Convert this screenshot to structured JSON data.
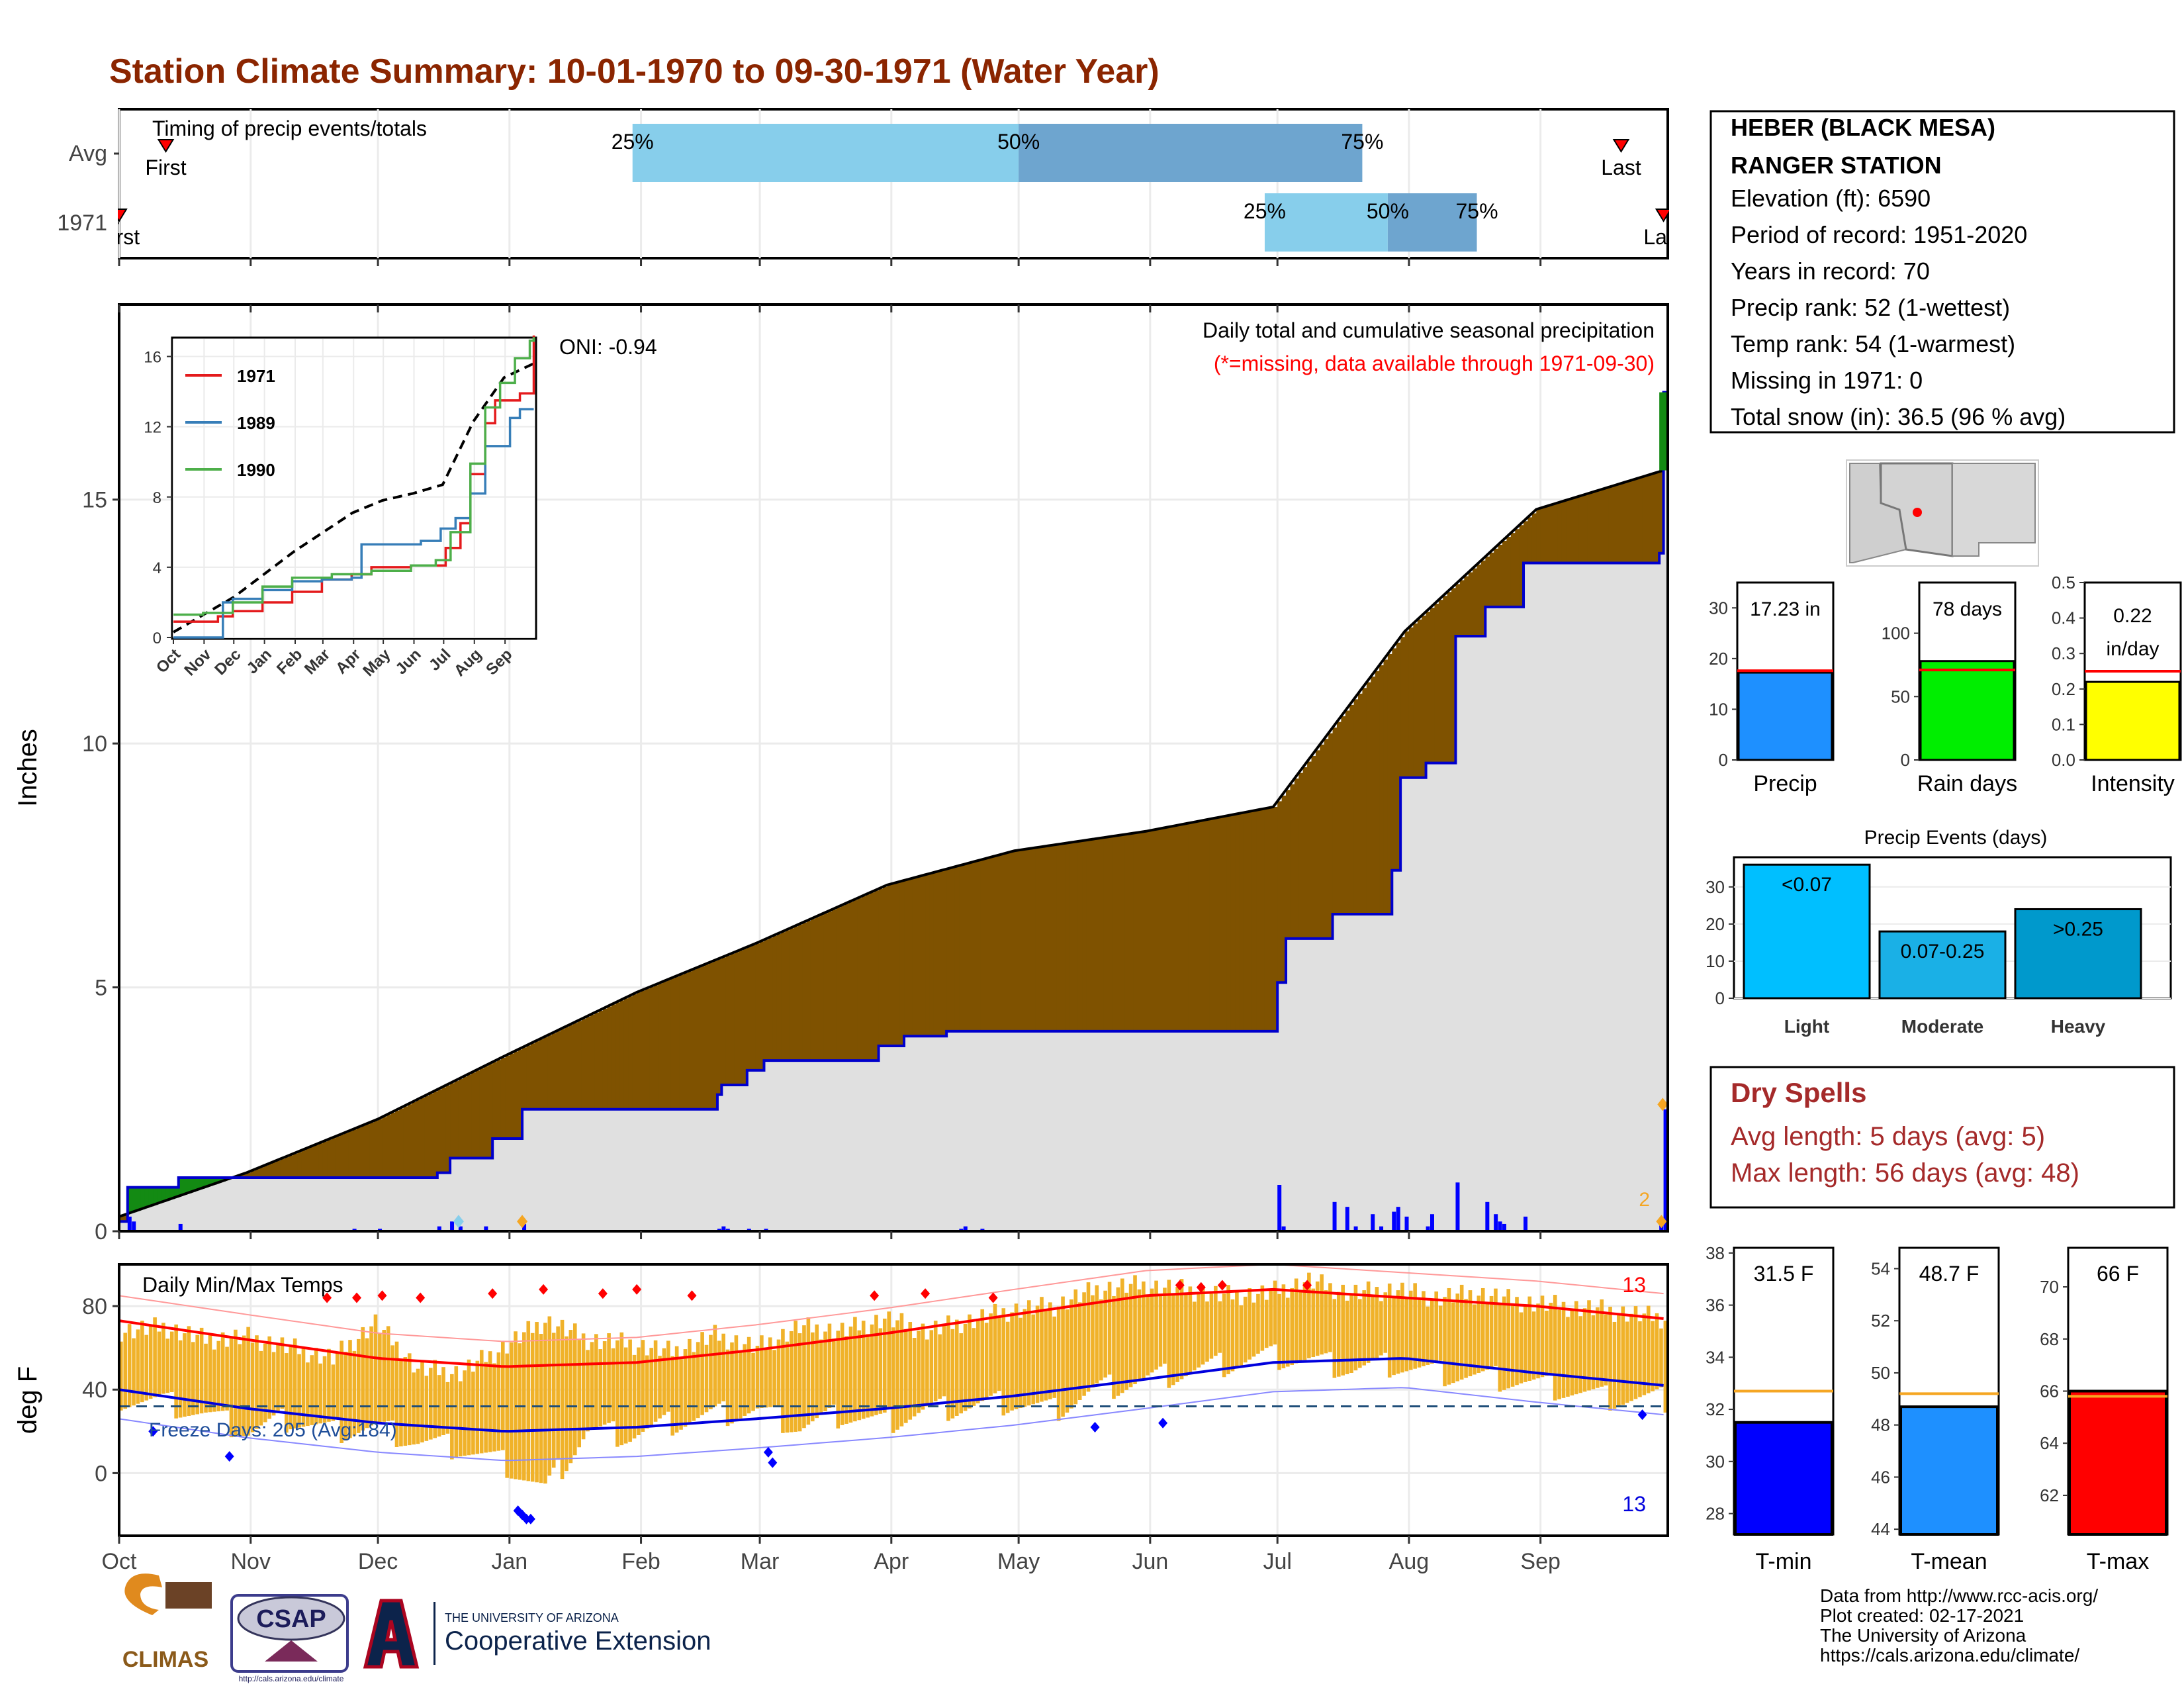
{
  "title": "Station Climate Summary: 10-01-1970 to 09-30-1971 (Water Year)",
  "chart_data": [
    {
      "type": "bar",
      "label": "Timing of precip events/totals",
      "rows": [
        {
          "name": "Avg",
          "first": "First",
          "last": "Last",
          "first_day": 11,
          "last_day": 354,
          "q25_day": 121,
          "q50_day": 212,
          "q75_day": 293
        },
        {
          "name": "1971",
          "first": "First",
          "last": "Last",
          "first_day": 0,
          "last_day": 364,
          "q25_day": 270,
          "q50_day": 299,
          "q75_day": 320
        }
      ],
      "quartile_labels": [
        "25%",
        "50%",
        "75%"
      ]
    },
    {
      "type": "area",
      "title": "Daily total and cumulative seasonal precipitation",
      "subtitle": "(*=missing, data available through 1971-09-30)",
      "oni": "ONI: -0.94",
      "ylabel": "Inches",
      "yticks": [
        "0",
        "5",
        "10",
        "15"
      ],
      "ylim": [
        0,
        19
      ],
      "xlim": [
        0,
        365
      ],
      "snow_count_label": "2",
      "avg_cumulative": {
        "x": [
          0,
          30,
          61,
          91,
          122,
          150,
          181,
          211,
          242,
          272,
          303,
          334,
          364
        ],
        "y": [
          0.3,
          1.2,
          2.3,
          3.6,
          4.9,
          5.9,
          7.1,
          7.8,
          8.2,
          8.7,
          12.3,
          14.8,
          15.6
        ]
      },
      "obs_cumulative": {
        "x": [
          0,
          2,
          14,
          30,
          61,
          75,
          78,
          88,
          95,
          141,
          142,
          148,
          152,
          179,
          179,
          185,
          195,
          196,
          205,
          220,
          273,
          275,
          286,
          300,
          302,
          308,
          315,
          322,
          331,
          331,
          363,
          364
        ],
        "y": [
          0.2,
          0.9,
          1.1,
          1.1,
          1.1,
          1.2,
          1.5,
          1.9,
          2.5,
          2.8,
          3.0,
          3.3,
          3.5,
          3.6,
          3.8,
          4.0,
          4.1,
          4.1,
          4.1,
          4.1,
          5.1,
          6.0,
          6.5,
          7.4,
          9.3,
          9.6,
          12.2,
          12.8,
          13.5,
          13.7,
          13.9,
          17.2
        ]
      },
      "daily_bars": {
        "x": [
          2,
          3,
          14,
          55,
          61,
          75,
          78,
          80,
          86,
          95,
          141,
          142,
          143,
          148,
          152,
          198,
          199,
          203,
          273,
          274,
          286,
          289,
          291,
          295,
          297,
          300,
          301,
          303,
          308,
          309,
          315,
          322,
          324,
          325,
          326,
          331,
          363,
          364
        ],
        "y": [
          0.3,
          0.2,
          0.15,
          0.05,
          0.05,
          0.1,
          0.2,
          0.1,
          0.1,
          0.15,
          0.05,
          0.1,
          0.05,
          0.05,
          0.05,
          0.05,
          0.1,
          0.05,
          0.95,
          0.1,
          0.6,
          0.5,
          0.1,
          0.35,
          0.1,
          0.4,
          0.5,
          0.3,
          0.1,
          0.35,
          1.0,
          0.6,
          0.35,
          0.2,
          0.15,
          0.3,
          0.15,
          2.5
        ]
      }
    },
    {
      "type": "line",
      "inset": true,
      "xticks": [
        "Oct",
        "Nov",
        "Dec",
        "Jan",
        "Feb",
        "Mar",
        "Apr",
        "May",
        "Jun",
        "Jul",
        "Aug",
        "Sep"
      ],
      "yticks": [
        "0",
        "4",
        "8",
        "12",
        "16"
      ],
      "ylim": [
        0,
        17
      ],
      "series": [
        {
          "name": "1971",
          "color": "#e41a1c",
          "x": [
            0,
            45,
            60,
            90,
            120,
            150,
            180,
            200,
            240,
            260,
            275,
            290,
            300,
            315,
            325,
            350,
            364
          ],
          "y": [
            0.9,
            1.2,
            1.5,
            2.0,
            2.6,
            3.3,
            3.6,
            4.0,
            4.1,
            4.1,
            5.1,
            6.5,
            9.3,
            12.2,
            13.5,
            13.9,
            17.2
          ]
        },
        {
          "name": "1989",
          "color": "#377eb8",
          "x": [
            0,
            40,
            50,
            60,
            90,
            120,
            150,
            180,
            190,
            250,
            270,
            285,
            300,
            315,
            340,
            350,
            364
          ],
          "y": [
            0.0,
            0.0,
            2.0,
            2.2,
            2.7,
            3.2,
            3.3,
            3.4,
            5.3,
            5.5,
            6.2,
            6.8,
            8.2,
            10.9,
            12.5,
            13.0,
            13.0
          ]
        },
        {
          "name": "1990",
          "color": "#4daf4a",
          "x": [
            0,
            30,
            60,
            90,
            120,
            160,
            200,
            240,
            265,
            280,
            300,
            315,
            330,
            345,
            360,
            364
          ],
          "y": [
            1.3,
            1.4,
            2.0,
            2.9,
            3.4,
            3.6,
            3.8,
            4.1,
            4.4,
            6.0,
            9.9,
            13.1,
            14.5,
            15.9,
            16.9,
            17.1
          ]
        }
      ],
      "avg_series": {
        "x": [
          0,
          61,
          122,
          181,
          211,
          242,
          272,
          303,
          334,
          364
        ],
        "y": [
          0.3,
          2.3,
          4.9,
          7.1,
          7.8,
          8.2,
          8.7,
          12.3,
          14.8,
          15.6
        ]
      }
    },
    {
      "type": "bar",
      "title": "Daily Min/Max Temps",
      "ylabel": "deg F",
      "yticks": [
        "0",
        "40",
        "80"
      ],
      "ylim": [
        -30,
        100
      ],
      "freeze_label": "Freeze Days: 205 (Avg:184)",
      "freeze_line": 32,
      "count_max": "13",
      "count_min": "13",
      "avg_max": {
        "x": [
          0,
          30,
          61,
          91,
          122,
          150,
          181,
          211,
          242,
          272,
          303,
          334,
          364
        ],
        "y": [
          73,
          64,
          55,
          51,
          53,
          59,
          67,
          76,
          85,
          88,
          84,
          80,
          74
        ]
      },
      "avg_min": {
        "x": [
          0,
          30,
          61,
          91,
          122,
          150,
          181,
          211,
          242,
          272,
          303,
          334,
          364
        ],
        "y": [
          40,
          31,
          24,
          20,
          22,
          26,
          31,
          37,
          45,
          53,
          55,
          48,
          42
        ]
      },
      "max_series": {
        "x": [
          0,
          10,
          20,
          30,
          40,
          50,
          60,
          70,
          80,
          90,
          100,
          110,
          120,
          130,
          140,
          150,
          160,
          170,
          180,
          190,
          200,
          210,
          220,
          230,
          240,
          250,
          260,
          270,
          280,
          290,
          300,
          310,
          320,
          330,
          340,
          350,
          364
        ],
        "y": [
          68,
          70,
          64,
          65,
          60,
          55,
          72,
          50,
          48,
          60,
          73,
          64,
          62,
          58,
          66,
          60,
          70,
          68,
          74,
          68,
          73,
          78,
          80,
          88,
          90,
          88,
          85,
          86,
          92,
          86,
          88,
          84,
          86,
          82,
          80,
          78,
          74
        ]
      },
      "min_series": {
        "x": [
          0,
          10,
          20,
          30,
          40,
          50,
          60,
          70,
          80,
          90,
          100,
          110,
          120,
          130,
          140,
          150,
          160,
          170,
          180,
          190,
          200,
          210,
          220,
          230,
          240,
          250,
          260,
          270,
          280,
          290,
          300,
          310,
          320,
          330,
          340,
          350,
          364
        ],
        "y": [
          36,
          34,
          28,
          20,
          26,
          20,
          22,
          15,
          12,
          5,
          -8,
          20,
          18,
          24,
          28,
          30,
          22,
          28,
          24,
          30,
          32,
          34,
          30,
          40,
          44,
          48,
          52,
          56,
          54,
          50,
          52,
          48,
          46,
          44,
          40,
          36,
          35
        ]
      }
    }
  ],
  "side": {
    "station_line1": "HEBER (BLACK MESA)",
    "station_line2": "RANGER STATION",
    "elevation": "Elevation (ft): 6590",
    "period": "Period of record: 1951-2020",
    "years": "Years in record: 70",
    "precip_rank": "Precip rank: 52 (1-wettest)",
    "temp_rank": "Temp rank: 54 (1-warmest)",
    "missing": "Missing in 1971: 0",
    "snow": "Total snow (in): 36.5 (96 % avg)"
  },
  "mini_bars": [
    {
      "label": "Precip",
      "value_label": "17.23 in",
      "value": 17.23,
      "avg": 17.6,
      "ylim": [
        0,
        35
      ],
      "yticks": [
        "0",
        "10",
        "20",
        "30"
      ],
      "color": "#1e90ff"
    },
    {
      "label": "Rain days",
      "value_label": "78 days",
      "value": 78,
      "avg": 71,
      "ylim": [
        0,
        140
      ],
      "yticks": [
        "0",
        "50",
        "100"
      ],
      "color": "#00ee00"
    },
    {
      "label": "Intensity",
      "value_label_1": "0.22",
      "value_label_2": "in/day",
      "value": 0.22,
      "avg": 0.25,
      "ylim": [
        0,
        0.5
      ],
      "yticks": [
        "0.0",
        "0.1",
        "0.2",
        "0.3",
        "0.4",
        "0.5"
      ],
      "color": "#ffff00"
    }
  ],
  "events": {
    "title": "Precip Events (days)",
    "categories": [
      "Light",
      "Moderate",
      "Heavy"
    ],
    "value_labels": [
      "<0.07",
      "0.07-0.25",
      ">0.25"
    ],
    "values": [
      36,
      18,
      24
    ],
    "colors": [
      "#00bfff",
      "#1ab0e6",
      "#0099cc"
    ],
    "yticks": [
      "0",
      "10",
      "20",
      "30"
    ],
    "ylim": [
      0,
      38
    ]
  },
  "dry": {
    "title": "Dry Spells",
    "avg": "Avg length: 5 days (avg: 5)",
    "max": "Max length: 56 days (avg: 48)"
  },
  "temp_bars": [
    {
      "label": "T-min",
      "value_label": "31.5 F",
      "value": 31.5,
      "avg": 32.7,
      "ylim": [
        27.2,
        38.2
      ],
      "yticks": [
        "28",
        "30",
        "32",
        "34",
        "36",
        "38"
      ],
      "color": "#0000ff"
    },
    {
      "label": "T-mean",
      "value_label": "48.7 F",
      "value": 48.7,
      "avg": 49.2,
      "ylim": [
        43.8,
        54.8
      ],
      "yticks": [
        "44",
        "46",
        "48",
        "50",
        "52",
        "54"
      ],
      "color": "#1e90ff"
    },
    {
      "label": "T-max",
      "value_label": "66 F",
      "value": 66,
      "avg": 65.8,
      "ylim": [
        60.5,
        71.5
      ],
      "yticks": [
        "62",
        "64",
        "66",
        "68",
        "70"
      ],
      "color": "#ff0000"
    }
  ],
  "months": [
    "Oct",
    "Nov",
    "Dec",
    "Jan",
    "Feb",
    "Mar",
    "Apr",
    "May",
    "Jun",
    "Jul",
    "Aug",
    "Sep"
  ],
  "footer": {
    "line1": "Data from http://www.rcc-acis.org/",
    "line2": "Plot created: 02-17-2021",
    "line3": "The University of Arizona",
    "line4": "https://cals.arizona.edu/climate/",
    "climas": "CLIMAS",
    "csap": "CSAP",
    "csap_url": "http://cals.arizona.edu/climate",
    "ua_small": "THE UNIVERSITY OF ARIZONA",
    "ua_big": "Cooperative Extension"
  },
  "colors": {
    "title": "#8b2500",
    "avg_area": "#7f5200",
    "wet_area": "#138a13",
    "obs_line": "#0000cc",
    "bars": "#0000ff",
    "temp_bar": "#f0b22a",
    "max_line": "#ff0000",
    "min_line": "#0000dd",
    "q_light": "#87ceeb",
    "q_dark": "#6ea5cf",
    "dry": "#a52a2a"
  }
}
